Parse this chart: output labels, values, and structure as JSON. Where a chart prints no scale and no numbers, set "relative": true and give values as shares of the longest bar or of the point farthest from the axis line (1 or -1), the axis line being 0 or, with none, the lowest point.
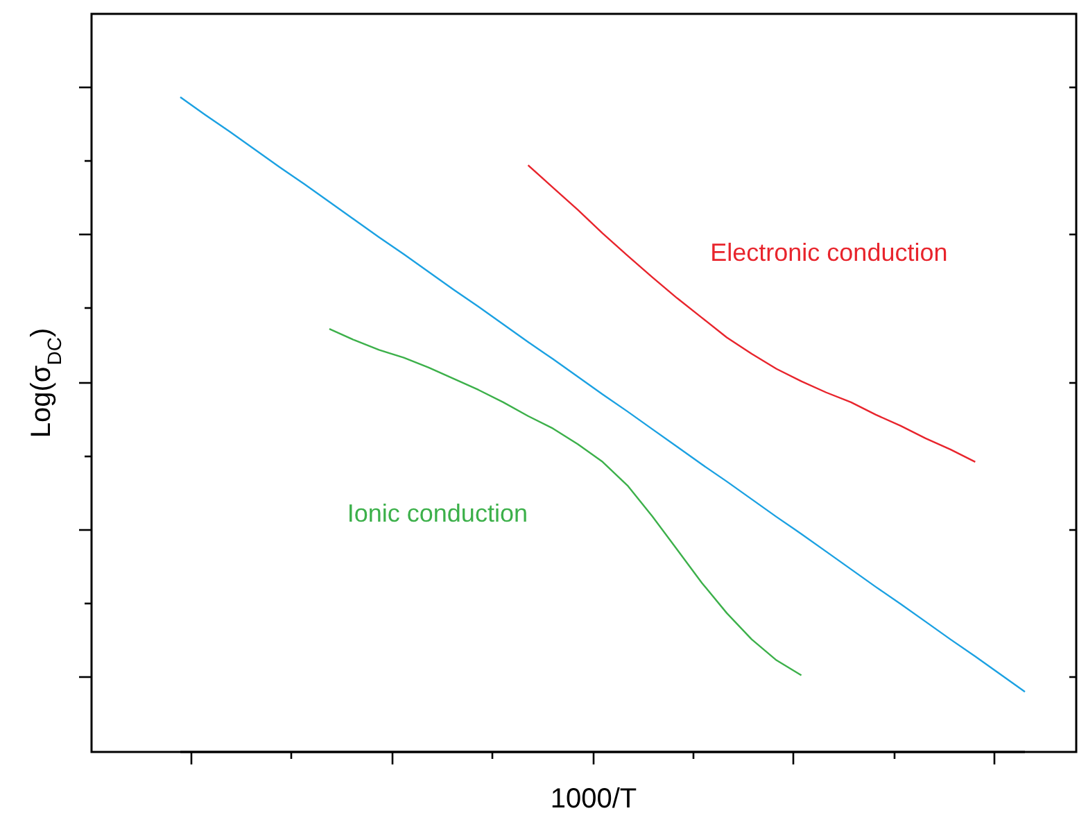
{
  "chart_data": {
    "type": "line",
    "relative": true,
    "xlabel": "1000/T",
    "ylabel": "Log(σ$_{DC}$)",
    "categories": [
      null,
      null,
      null,
      null,
      null,
      null,
      null,
      null,
      null,
      null,
      null,
      null,
      null,
      null,
      null,
      null,
      null,
      null,
      null,
      null,
      null,
      null,
      null,
      null,
      null,
      null,
      null,
      null,
      null,
      null,
      null,
      null,
      null,
      null,
      null
    ],
    "series": [
      {
        "color": "#1ba1e2",
        "values": [
          1,
          0.973,
          0.947,
          0.92,
          0.893,
          0.867,
          0.84,
          0.813,
          0.786,
          0.76,
          0.733,
          0.706,
          0.68,
          0.653,
          0.626,
          0.6,
          0.573,
          0.546,
          0.52,
          0.493,
          0.466,
          0.439,
          0.413,
          0.386,
          0.359,
          0.333,
          0.306,
          0.279,
          0.252,
          0.226,
          0.199,
          0.172,
          0.146,
          0.119,
          0.092
        ]
      },
      {
        "name": "Electronic conduction",
        "color": "#e8242c",
        "values": [
          null,
          null,
          null,
          null,
          null,
          null,
          null,
          null,
          null,
          null,
          null,
          null,
          null,
          null,
          0.896,
          0.862,
          0.828,
          0.792,
          0.758,
          0.725,
          0.693,
          0.663,
          0.633,
          0.608,
          0.585,
          0.566,
          0.549,
          0.534,
          0.515,
          0.498,
          0.479,
          0.462,
          0.443,
          null,
          null
        ]
      },
      {
        "name": "Ionic conduction",
        "color": "#3cb04a",
        "values": [
          null,
          null,
          null,
          null,
          null,
          null,
          0.646,
          0.629,
          0.614,
          0.602,
          0.587,
          0.57,
          0.553,
          0.534,
          0.513,
          0.494,
          0.47,
          0.443,
          0.407,
          0.36,
          0.309,
          0.258,
          0.212,
          0.172,
          0.14,
          0.117,
          null,
          null,
          null,
          null,
          null,
          null,
          null,
          null,
          null
        ]
      }
    ],
    "legend": false,
    "line_style": "solid",
    "marker": "none"
  }
}
